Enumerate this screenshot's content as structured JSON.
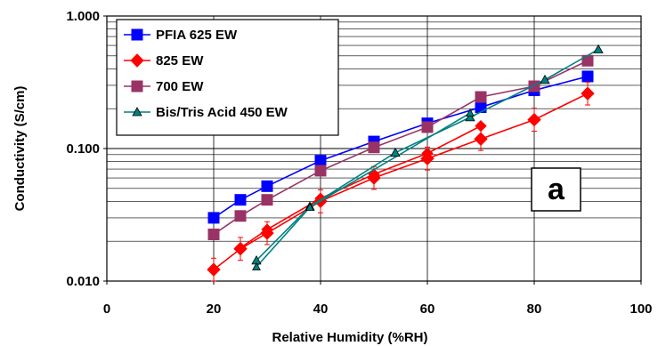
{
  "chart_data": {
    "type": "line",
    "xlabel": "Relative Humidity (%RH)",
    "ylabel": "Conductivity (S/cm)",
    "xlim": [
      0,
      100
    ],
    "ylim": [
      0.01,
      1.0
    ],
    "yscale": "log",
    "grid": "on",
    "legend_position": "top-left",
    "x_ticks": [
      "0",
      "20",
      "40",
      "60",
      "80",
      "100"
    ],
    "y_ticks": [
      "0.010",
      "0.100",
      "1.000"
    ],
    "annotation": "a",
    "series": [
      {
        "name": "PFIA 625 EW",
        "color": "#0000ff",
        "marker": "square",
        "x": [
          20,
          25,
          30,
          40,
          50,
          60,
          70,
          80,
          90
        ],
        "y": [
          0.03,
          0.041,
          0.052,
          0.081,
          0.113,
          0.155,
          0.205,
          0.275,
          0.35
        ]
      },
      {
        "name": "825 EW",
        "color": "#ff0000",
        "marker": "diamond",
        "x": [
          20,
          25,
          30,
          40,
          50,
          60,
          70,
          80,
          90
        ],
        "y": [
          0.0122,
          0.0175,
          0.023,
          0.04,
          0.06,
          0.084,
          0.118,
          0.165,
          0.26
        ],
        "x2": [
          25,
          30,
          40,
          50,
          60,
          70
        ],
        "y2": [
          0.0178,
          0.0245,
          0.042,
          0.064,
          0.092,
          0.148
        ]
      },
      {
        "name": "700 EW",
        "color": "#993366",
        "marker": "square",
        "x": [
          20,
          25,
          30,
          40,
          50,
          60,
          70,
          80,
          90
        ],
        "y": [
          0.0225,
          0.031,
          0.041,
          0.068,
          0.102,
          0.145,
          0.245,
          0.295,
          0.46
        ]
      },
      {
        "name": "Bis/Tris Acid 450 EW",
        "color": "#008080",
        "marker": "triangle",
        "x": [
          28,
          38,
          54,
          68,
          82,
          92
        ],
        "y": [
          0.0143,
          0.0365,
          0.093,
          0.172,
          0.33,
          0.56
        ],
        "x2": [
          28,
          38,
          68
        ],
        "y2": [
          0.0128,
          0.036,
          0.185
        ]
      }
    ]
  }
}
